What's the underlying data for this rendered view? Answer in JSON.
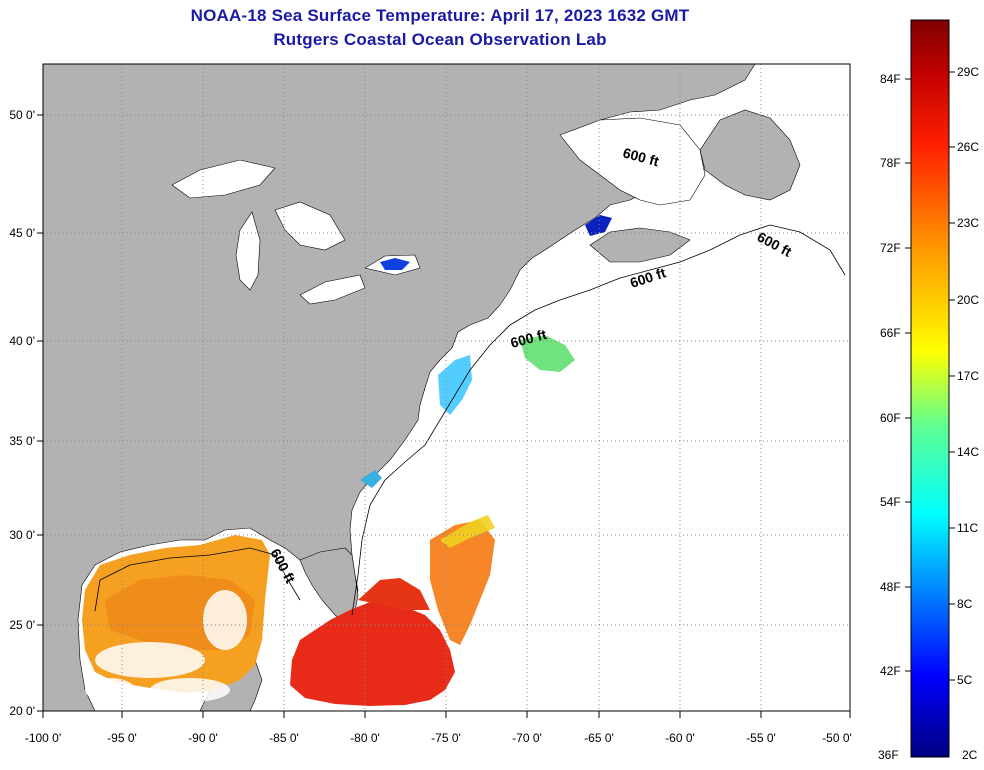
{
  "title": {
    "line1": "NOAA-18 Sea Surface Temperature:  April 17, 2023 1632 GMT",
    "line2": "Rutgers Coastal Ocean Observation Lab"
  },
  "map": {
    "lat_labels": [
      "50 0'",
      "45 0'",
      "40 0'",
      "35 0'",
      "30 0'",
      "25 0'",
      "20 0'"
    ],
    "lon_labels": [
      "-100 0'",
      "-95 0'",
      "-90 0'",
      "-85 0'",
      "-80 0'",
      "-75 0'",
      "-70 0'",
      "-65 0'",
      "-60 0'",
      "-55 0'",
      "-50 0'"
    ],
    "contour_label": "600 ft",
    "colors": {
      "land": "#b2b2b2",
      "ocean": "#ffffff",
      "grid": "#888888"
    }
  },
  "colorbar": {
    "fahrenheit_labels": [
      "84F",
      "78F",
      "72F",
      "66F",
      "60F",
      "54F",
      "48F",
      "42F",
      "36F"
    ],
    "celsius_labels": [
      "29C",
      "26C",
      "23C",
      "20C",
      "17C",
      "14C",
      "11C",
      "8C",
      "5C",
      "2C"
    ],
    "gradient_stops": [
      "#000080",
      "#0000ff",
      "#00a0ff",
      "#00ffff",
      "#60ff90",
      "#ffff00",
      "#ff9000",
      "#ff2000",
      "#c00000",
      "#800000"
    ]
  }
}
